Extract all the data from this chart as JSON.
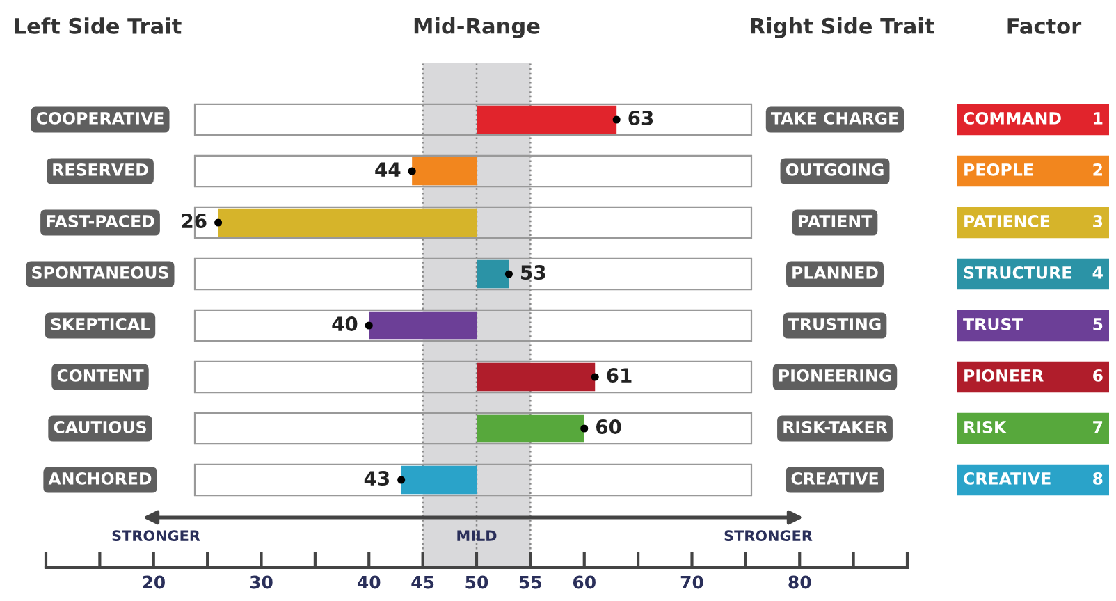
{
  "chart_data": {
    "type": "bar",
    "orientation": "horizontal",
    "categories": [
      "COOPERATIVE",
      "RESERVED",
      "FAST-PACED",
      "SPONTANEOUS",
      "SKEPTICAL",
      "CONTENT",
      "CAUTIOUS",
      "ANCHORED"
    ],
    "base": [
      50,
      50,
      50,
      50,
      50,
      50,
      50,
      50
    ],
    "values": [
      13,
      -6,
      -24,
      3,
      -10,
      11,
      10,
      -7
    ],
    "value_labels": [
      "63",
      "44",
      "26",
      "53",
      "40",
      "61",
      "60",
      "43"
    ],
    "colors": [
      "#e1242c",
      "#f2861e",
      "#d6b42a",
      "#2b93a6",
      "#6c3f97",
      "#b01d2b",
      "#57a83c",
      "#2aa3c9"
    ],
    "marker": "circle",
    "xlim": [
      10,
      90
    ],
    "xticks": [
      {
        "value": 10,
        "label": null
      },
      {
        "value": 15,
        "label": null
      },
      20,
      {
        "value": 25,
        "label": null
      },
      30,
      {
        "value": 35,
        "label": null
      },
      40,
      45,
      50,
      55,
      60,
      {
        "value": 65,
        "label": null
      },
      70,
      {
        "value": 75,
        "label": null
      },
      80,
      {
        "value": 85,
        "label": null
      },
      {
        "value": 90,
        "label": null
      }
    ],
    "bands": [
      {
        "axis": "x",
        "from": 45,
        "to": 55,
        "label": "Mid-Range",
        "color": "#d9d9db"
      }
    ],
    "ref_lines": [
      {
        "axis": "x",
        "value": 45,
        "label": null,
        "line_style": "dotted"
      },
      {
        "axis": "x",
        "value": 50,
        "label": "MILD",
        "line_style": "dotted"
      },
      {
        "axis": "x",
        "value": 55,
        "label": null,
        "line_style": "dotted"
      }
    ],
    "grid": false,
    "legend": false,
    "annotations": [
      "Left Side Trait",
      "Right Side Trait",
      "Factor",
      "STRONGER",
      "STRONGER",
      "TAKE CHARGE",
      "OUTGOING",
      "PATIENT",
      "PLANNED",
      "TRUSTING",
      "PIONEERING",
      "RISK-TAKER",
      "CREATIVE",
      "COMMAND 1",
      "PEOPLE 2",
      "PATIENCE 3",
      "STRUCTURE 4",
      "TRUST 5",
      "PIONEER 6",
      "RISK 7",
      "CREATIVE 8"
    ]
  }
}
